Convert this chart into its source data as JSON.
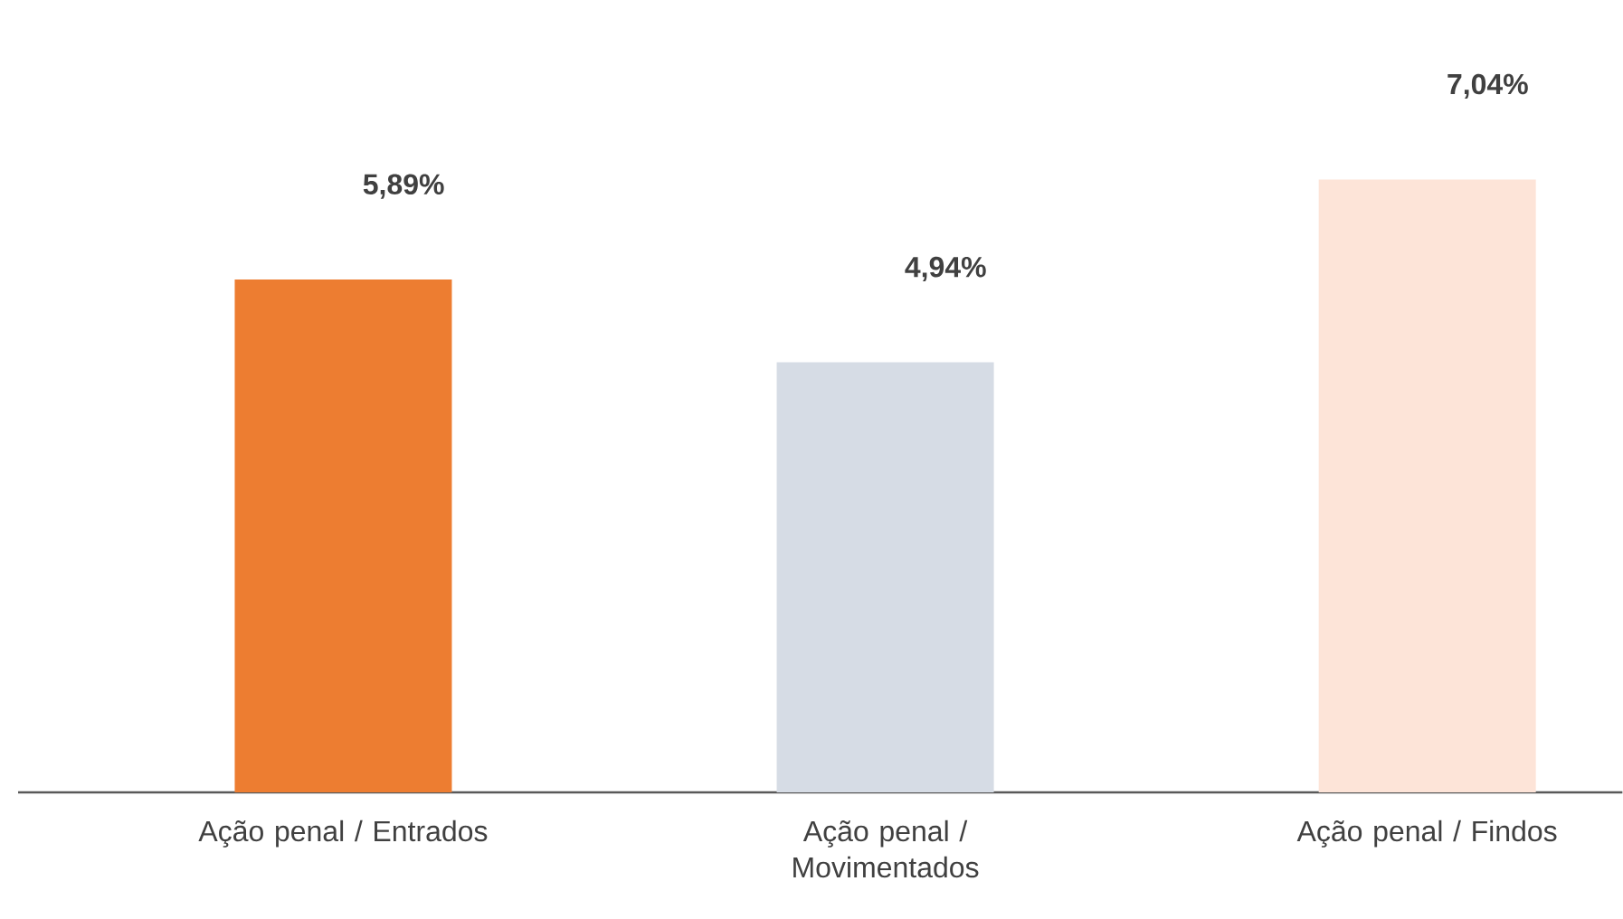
{
  "chart_data": {
    "type": "bar",
    "categories": [
      "Ação penal / Entrados",
      "Ação penal / Movimentados",
      "Ação penal / Findos"
    ],
    "values": [
      5.89,
      4.94,
      7.04
    ],
    "value_labels": [
      "5,89%",
      "4,94%",
      "7,04%"
    ],
    "colors": [
      "#ed7d31",
      "#d6dce5",
      "#fde4d8"
    ]
  }
}
